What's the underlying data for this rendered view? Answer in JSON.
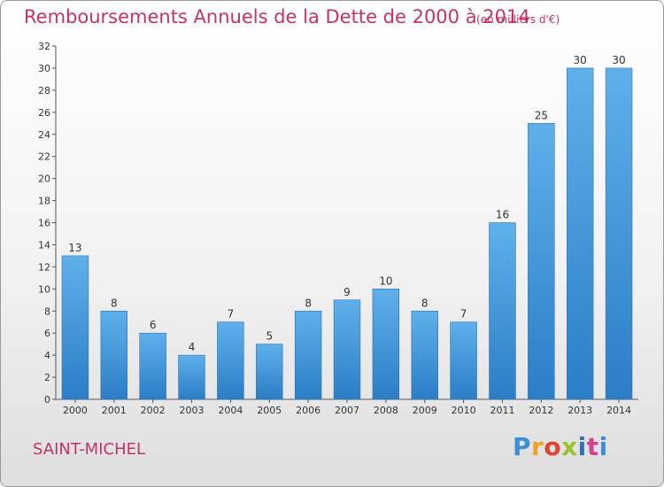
{
  "header": {
    "title": "Remboursements Annuels de la Dette de 2000 à 2014",
    "unit": "(en milliers d'€)"
  },
  "footer": {
    "commune": "SAINT-MICHEL",
    "logo_text": "Proxiti"
  },
  "colors": {
    "bar_light": "#5fb0ea",
    "bar_dark": "#2b7ec6",
    "accent": "#c0336b"
  },
  "chart_data": {
    "type": "bar",
    "title": "Remboursements Annuels de la Dette de 2000 à 2014",
    "subtitle": "(en milliers d'€)",
    "xlabel": "",
    "ylabel": "",
    "ylim": [
      0,
      32
    ],
    "yticks": [
      0,
      2,
      4,
      6,
      8,
      10,
      12,
      14,
      16,
      18,
      20,
      22,
      24,
      26,
      28,
      30,
      32
    ],
    "grid": false,
    "categories": [
      "2000",
      "2001",
      "2002",
      "2003",
      "2004",
      "2005",
      "2006",
      "2007",
      "2008",
      "2009",
      "2010",
      "2011",
      "2012",
      "2013",
      "2014"
    ],
    "values": [
      13,
      8,
      6,
      4,
      7,
      5,
      8,
      9,
      10,
      8,
      7,
      16,
      25,
      30,
      30
    ]
  }
}
